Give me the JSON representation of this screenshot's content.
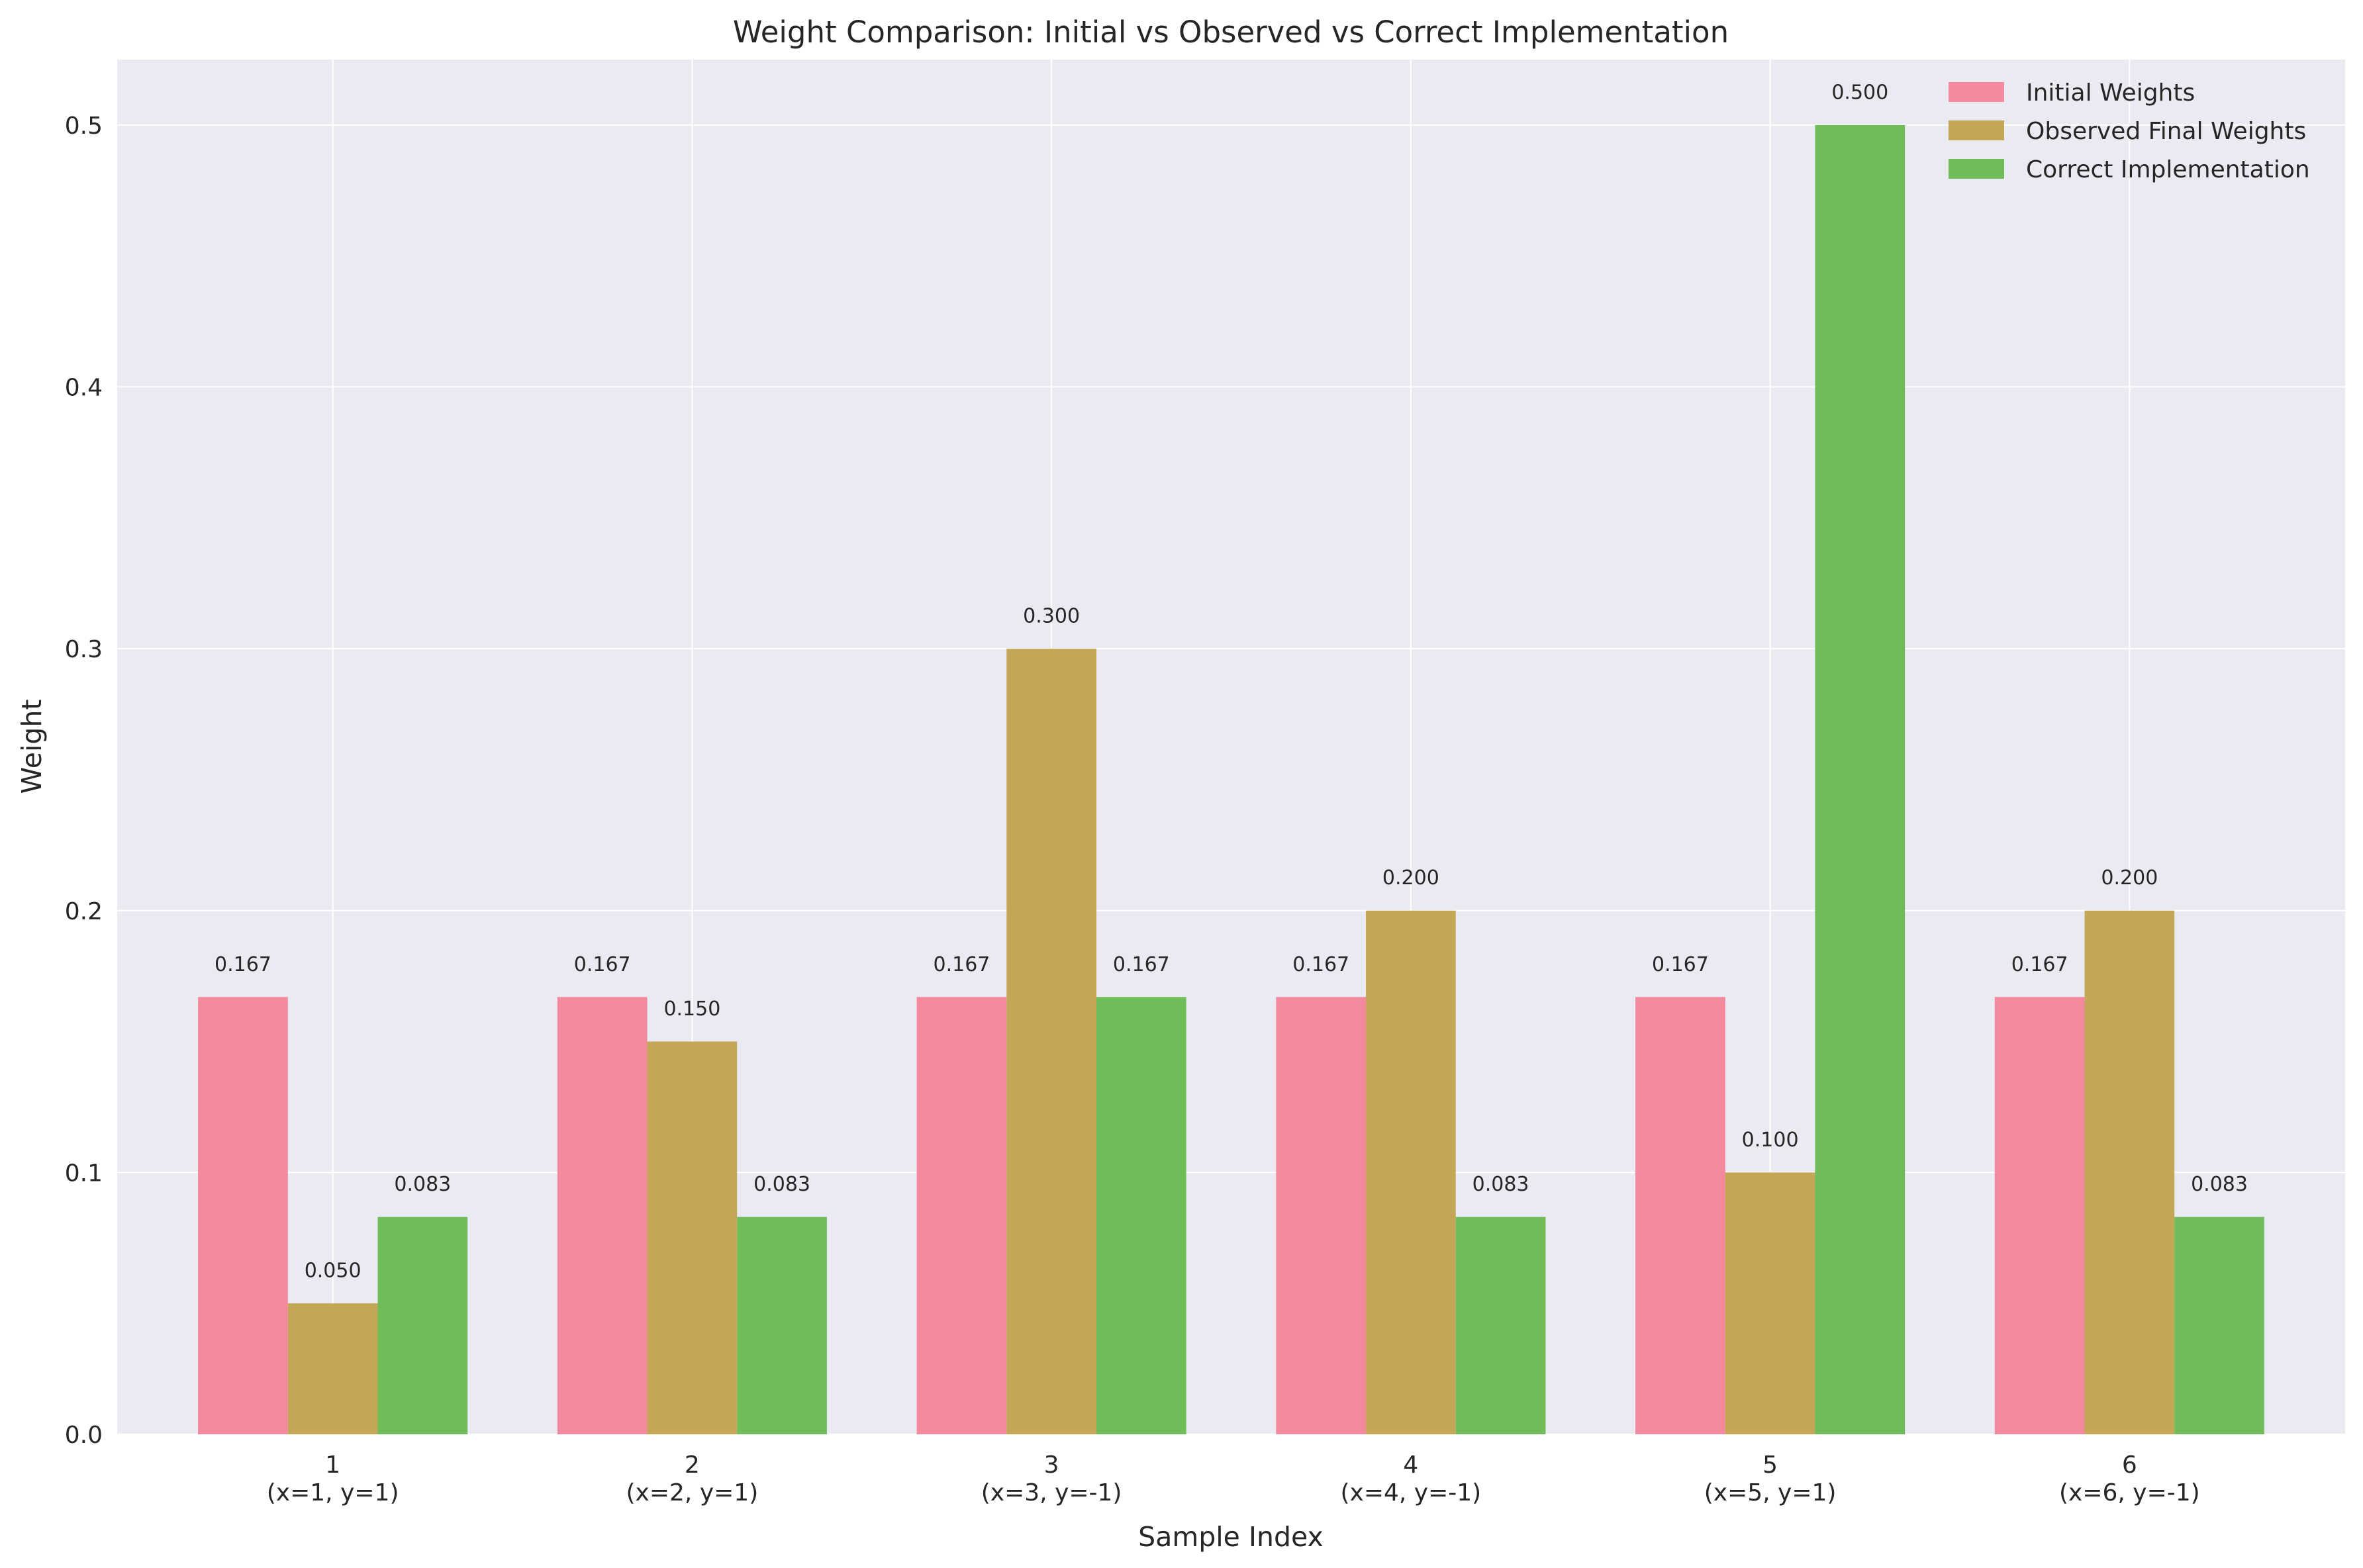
{
  "chart_data": {
    "type": "bar",
    "title": "Weight Comparison: Initial vs Observed vs Correct Implementation",
    "xlabel": "Sample Index",
    "ylabel": "Weight",
    "categories": [
      "1",
      "2",
      "3",
      "4",
      "5",
      "6"
    ],
    "category_sublabels": [
      "(x=1, y=1)",
      "(x=2, y=1)",
      "(x=3, y=-1)",
      "(x=4, y=-1)",
      "(x=5, y=1)",
      "(x=6, y=-1)"
    ],
    "yticks": [
      0.0,
      0.1,
      0.2,
      0.3,
      0.4,
      0.5
    ],
    "ytick_labels": [
      "0.0",
      "0.1",
      "0.2",
      "0.3",
      "0.4",
      "0.5"
    ],
    "ylim": [
      0,
      0.525
    ],
    "grid": true,
    "legend_position": "top-right",
    "series": [
      {
        "name": "Initial Weights",
        "color": "#f4889c",
        "values": [
          0.167,
          0.167,
          0.167,
          0.167,
          0.167,
          0.167
        ],
        "labels": [
          "0.167",
          "0.167",
          "0.167",
          "0.167",
          "0.167",
          "0.167"
        ]
      },
      {
        "name": "Observed Final Weights",
        "color": "#c4a657",
        "values": [
          0.05,
          0.15,
          0.3,
          0.2,
          0.1,
          0.2
        ],
        "labels": [
          "0.050",
          "0.150",
          "0.300",
          "0.200",
          "0.100",
          "0.200"
        ]
      },
      {
        "name": "Correct Implementation",
        "color": "#6fbc59",
        "values": [
          0.083,
          0.083,
          0.167,
          0.083,
          0.5,
          0.083
        ],
        "labels": [
          "0.083",
          "0.083",
          "0.167",
          "0.083",
          "0.500",
          "0.083"
        ]
      }
    ]
  },
  "colors": {
    "plot_background": "#eaeaf2",
    "grid": "#ffffff",
    "text": "#262626"
  }
}
